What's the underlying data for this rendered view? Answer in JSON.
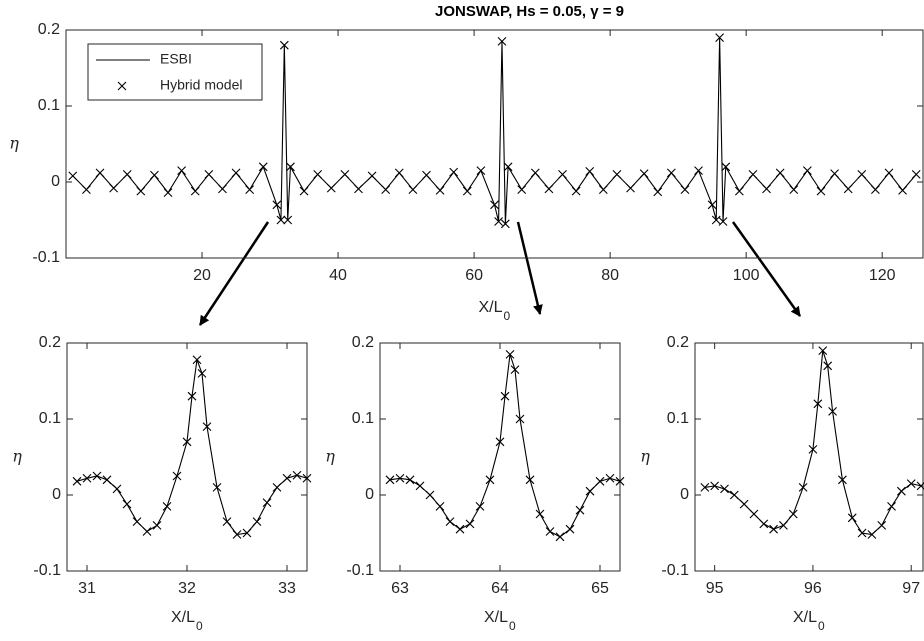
{
  "chart_data": [
    {
      "type": "line",
      "title": "JONSWAP, Hs = 0.05, γ = 9",
      "xlabel": "X/L",
      "xlabel_sub": "0",
      "ylabel": "η",
      "xlim": [
        0,
        126
      ],
      "ylim": [
        -0.1,
        0.2
      ],
      "xticks": [
        20,
        40,
        60,
        80,
        100,
        120
      ],
      "yticks": [
        -0.1,
        0,
        0.1,
        0.2
      ],
      "legend": "upper left",
      "x": [
        1,
        3,
        5,
        7,
        9,
        11,
        13,
        15,
        17,
        19,
        21,
        23,
        25,
        27,
        29,
        31,
        31.6,
        32.1,
        32.6,
        33,
        35,
        37,
        39,
        41,
        43,
        45,
        47,
        49,
        51,
        53,
        55,
        57,
        59,
        61,
        63,
        63.6,
        64.1,
        64.6,
        65,
        67,
        69,
        71,
        73,
        75,
        77,
        79,
        81,
        83,
        85,
        87,
        89,
        91,
        93,
        95,
        95.6,
        96.1,
        96.6,
        97,
        99,
        101,
        103,
        105,
        107,
        109,
        111,
        113,
        115,
        117,
        119,
        121,
        123,
        125
      ],
      "series": [
        {
          "name": "ESBI",
          "color": "#000000",
          "style": "line",
          "values": [
            0.008,
            -0.01,
            0.012,
            -0.008,
            0.01,
            -0.012,
            0.009,
            -0.014,
            0.015,
            -0.012,
            0.01,
            -0.009,
            0.012,
            -0.01,
            0.02,
            -0.03,
            -0.05,
            0.18,
            -0.05,
            0.02,
            -0.012,
            0.01,
            -0.008,
            0.01,
            -0.009,
            0.008,
            -0.01,
            0.012,
            -0.01,
            0.009,
            -0.011,
            0.013,
            -0.012,
            0.015,
            -0.03,
            -0.052,
            0.185,
            -0.055,
            0.02,
            -0.01,
            0.012,
            -0.009,
            0.01,
            -0.012,
            0.014,
            -0.01,
            0.01,
            -0.008,
            0.011,
            -0.013,
            0.012,
            -0.01,
            0.015,
            -0.03,
            -0.05,
            0.19,
            -0.052,
            0.02,
            -0.012,
            0.01,
            -0.009,
            0.012,
            -0.01,
            0.015,
            -0.012,
            0.011,
            -0.009,
            0.01,
            -0.01,
            0.012,
            -0.011,
            0.01
          ]
        },
        {
          "name": "Hybrid model",
          "color": "#000000",
          "style": "marker",
          "values": [
            0.008,
            -0.01,
            0.012,
            -0.008,
            0.01,
            -0.012,
            0.009,
            -0.014,
            0.015,
            -0.012,
            0.01,
            -0.009,
            0.012,
            -0.01,
            0.02,
            -0.03,
            -0.05,
            0.18,
            -0.05,
            0.02,
            -0.012,
            0.01,
            -0.008,
            0.01,
            -0.009,
            0.008,
            -0.01,
            0.012,
            -0.01,
            0.009,
            -0.011,
            0.013,
            -0.012,
            0.015,
            -0.03,
            -0.052,
            0.185,
            -0.055,
            0.02,
            -0.01,
            0.012,
            -0.009,
            0.01,
            -0.012,
            0.014,
            -0.01,
            0.01,
            -0.008,
            0.011,
            -0.013,
            0.012,
            -0.01,
            0.015,
            -0.03,
            -0.05,
            0.19,
            -0.052,
            0.02,
            -0.012,
            0.01,
            -0.009,
            0.012,
            -0.01,
            0.015,
            -0.012,
            0.011,
            -0.009,
            0.01,
            -0.01,
            0.012,
            -0.011,
            0.01
          ]
        }
      ]
    },
    {
      "type": "line",
      "xlabel": "X/L",
      "xlabel_sub": "0",
      "ylabel": "η",
      "xlim": [
        30.8,
        33.2
      ],
      "ylim": [
        -0.1,
        0.2
      ],
      "xticks": [
        31,
        32,
        33
      ],
      "yticks": [
        -0.1,
        0,
        0.1,
        0.2
      ],
      "x": [
        30.9,
        31,
        31.1,
        31.2,
        31.3,
        31.4,
        31.5,
        31.6,
        31.7,
        31.8,
        31.9,
        32,
        32.05,
        32.1,
        32.15,
        32.2,
        32.3,
        32.4,
        32.5,
        32.6,
        32.7,
        32.8,
        32.9,
        33,
        33.1,
        33.2
      ],
      "series": [
        {
          "color": "#000000",
          "style": "line",
          "values": [
            0.018,
            0.022,
            0.025,
            0.02,
            0.008,
            -0.012,
            -0.035,
            -0.048,
            -0.04,
            -0.015,
            0.025,
            0.07,
            0.13,
            0.178,
            0.16,
            0.09,
            0.01,
            -0.035,
            -0.052,
            -0.05,
            -0.035,
            -0.01,
            0.01,
            0.022,
            0.026,
            0.022
          ]
        },
        {
          "color": "#000000",
          "style": "marker",
          "values": [
            0.018,
            0.022,
            0.025,
            0.02,
            0.008,
            -0.012,
            -0.035,
            -0.048,
            -0.04,
            -0.015,
            0.025,
            0.07,
            0.13,
            0.178,
            0.16,
            0.09,
            0.01,
            -0.035,
            -0.052,
            -0.05,
            -0.035,
            -0.01,
            0.01,
            0.022,
            0.026,
            0.022
          ]
        }
      ]
    },
    {
      "type": "line",
      "xlabel": "X/L",
      "xlabel_sub": "0",
      "ylabel": "η",
      "xlim": [
        62.8,
        65.2
      ],
      "ylim": [
        -0.1,
        0.2
      ],
      "xticks": [
        63,
        64,
        65
      ],
      "yticks": [
        -0.1,
        0,
        0.1,
        0.2
      ],
      "x": [
        62.9,
        63,
        63.1,
        63.2,
        63.3,
        63.4,
        63.5,
        63.6,
        63.7,
        63.8,
        63.9,
        64,
        64.05,
        64.1,
        64.15,
        64.2,
        64.3,
        64.4,
        64.5,
        64.6,
        64.7,
        64.8,
        64.9,
        65,
        65.1,
        65.2
      ],
      "series": [
        {
          "color": "#000000",
          "style": "line",
          "values": [
            0.02,
            0.022,
            0.02,
            0.012,
            0.0,
            -0.015,
            -0.035,
            -0.045,
            -0.038,
            -0.015,
            0.02,
            0.07,
            0.13,
            0.185,
            0.165,
            0.1,
            0.02,
            -0.025,
            -0.048,
            -0.055,
            -0.045,
            -0.02,
            0.005,
            0.018,
            0.022,
            0.018
          ]
        },
        {
          "color": "#000000",
          "style": "marker",
          "values": [
            0.02,
            0.022,
            0.02,
            0.012,
            0.0,
            -0.015,
            -0.035,
            -0.045,
            -0.038,
            -0.015,
            0.02,
            0.07,
            0.13,
            0.185,
            0.165,
            0.1,
            0.02,
            -0.025,
            -0.048,
            -0.055,
            -0.045,
            -0.02,
            0.005,
            0.018,
            0.022,
            0.018
          ]
        }
      ]
    },
    {
      "type": "line",
      "xlabel": "X/L",
      "xlabel_sub": "0",
      "ylabel": "η",
      "xlim": [
        94.8,
        97.12
      ],
      "ylim": [
        -0.1,
        0.2
      ],
      "xticks": [
        95,
        96,
        97
      ],
      "yticks": [
        -0.1,
        0,
        0.1,
        0.2
      ],
      "x": [
        94.9,
        95,
        95.1,
        95.2,
        95.3,
        95.4,
        95.5,
        95.6,
        95.7,
        95.8,
        95.9,
        96,
        96.05,
        96.1,
        96.15,
        96.2,
        96.3,
        96.4,
        96.5,
        96.6,
        96.7,
        96.8,
        96.9,
        97,
        97.1
      ],
      "series": [
        {
          "color": "#000000",
          "style": "line",
          "values": [
            0.01,
            0.012,
            0.008,
            0.0,
            -0.012,
            -0.025,
            -0.038,
            -0.045,
            -0.04,
            -0.025,
            0.01,
            0.06,
            0.12,
            0.19,
            0.17,
            0.11,
            0.02,
            -0.03,
            -0.05,
            -0.052,
            -0.04,
            -0.015,
            0.005,
            0.015,
            0.012
          ]
        },
        {
          "color": "#000000",
          "style": "marker",
          "values": [
            0.01,
            0.012,
            0.008,
            0.0,
            -0.012,
            -0.025,
            -0.038,
            -0.045,
            -0.04,
            -0.025,
            0.01,
            0.06,
            0.12,
            0.19,
            0.17,
            0.11,
            0.02,
            -0.03,
            -0.05,
            -0.052,
            -0.04,
            -0.015,
            0.005,
            0.015,
            0.012
          ]
        }
      ]
    }
  ]
}
